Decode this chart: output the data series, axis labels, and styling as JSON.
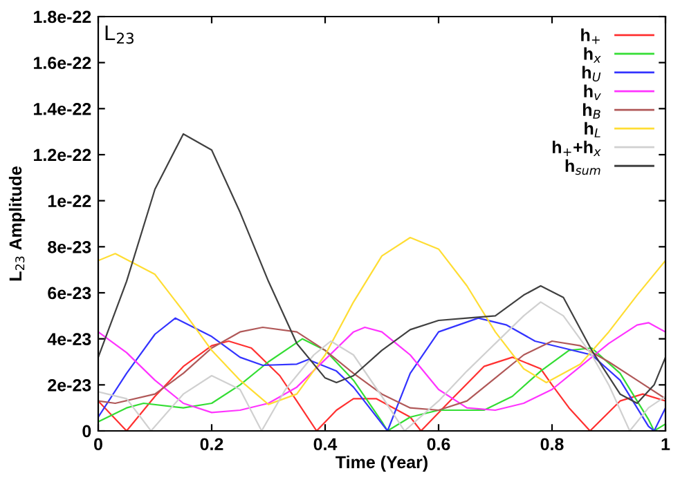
{
  "chart_data": {
    "type": "line",
    "title": "L$_{23}$",
    "xlabel": "Time (Year)",
    "ylabel": "L$_{23}$ Amplitude",
    "xlim": [
      0,
      1
    ],
    "ylim": [
      0,
      1.8e-22
    ],
    "xticks": [
      0,
      0.2,
      0.4,
      0.6,
      0.8,
      1
    ],
    "yticks": [
      0,
      {
        "value": 2e-23,
        "label": "2e-23"
      },
      {
        "value": 4e-23,
        "label": "4e-23"
      },
      {
        "value": 6e-23,
        "label": "6e-23"
      },
      {
        "value": 8e-23,
        "label": "8e-23"
      },
      {
        "value": 1e-22,
        "label": "1e-22"
      },
      {
        "value": 1.2e-22,
        "label": "1.2e-22"
      },
      {
        "value": 1.4e-22,
        "label": "1.4e-22"
      },
      {
        "value": 1.6e-22,
        "label": "1.6e-22"
      },
      {
        "value": 1.8e-22,
        "label": "1.8e-22"
      }
    ],
    "grid": false,
    "legend": "top right",
    "marker": "none",
    "line_style": "solid",
    "series": [
      {
        "name": "h$_{+}$",
        "color": "#ff3030",
        "x": [
          0,
          0.05,
          0.1,
          0.15,
          0.2,
          0.23,
          0.27,
          0.32,
          0.35,
          0.385,
          0.42,
          0.45,
          0.49,
          0.55,
          0.569,
          0.62,
          0.68,
          0.73,
          0.78,
          0.8,
          0.83,
          0.867,
          0.92,
          0.96,
          1.0
        ],
        "values": [
          1.3e-23,
          0,
          1.5e-23,
          2.8e-23,
          3.7e-23,
          3.9e-23,
          3.6e-23,
          2.4e-23,
          1.3e-23,
          0,
          9e-24,
          1.4e-23,
          1.4e-23,
          6e-24,
          0,
          1.3e-23,
          2.8e-23,
          3.2e-23,
          2.7e-23,
          2e-23,
          1e-23,
          0,
          1.3e-23,
          1.6e-23,
          1.3e-23
        ]
      },
      {
        "name": "h$_{x}$",
        "color": "#33dd33",
        "x": [
          0,
          0.05,
          0.08,
          0.15,
          0.2,
          0.25,
          0.3,
          0.36,
          0.4,
          0.45,
          0.5,
          0.51,
          0.55,
          0.6,
          0.68,
          0.73,
          0.78,
          0.83,
          0.87,
          0.92,
          0.97,
          0.98,
          1.0
        ],
        "values": [
          4e-24,
          1e-23,
          1.2e-23,
          1e-23,
          1.2e-23,
          2e-23,
          3e-23,
          4e-23,
          3.5e-23,
          2.2e-23,
          4e-24,
          0,
          6e-24,
          9e-24,
          9e-24,
          1.5e-23,
          2.6e-23,
          3.5e-23,
          3.6e-23,
          2.5e-23,
          5e-24,
          0,
          3e-24
        ]
      },
      {
        "name": "h$_{U}$",
        "color": "#3333ff",
        "x": [
          0,
          0.05,
          0.1,
          0.136,
          0.2,
          0.25,
          0.29,
          0.35,
          0.37,
          0.42,
          0.45,
          0.51,
          0.55,
          0.6,
          0.67,
          0.72,
          0.77,
          0.82,
          0.87,
          0.92,
          0.97,
          0.98,
          1.0
        ],
        "values": [
          6e-24,
          2.5e-23,
          4.2e-23,
          4.9e-23,
          4.1e-23,
          3.2e-23,
          2.85e-23,
          2.9e-23,
          3.1e-23,
          2.6e-23,
          1.9e-23,
          0,
          2.5e-23,
          4.3e-23,
          4.9e-23,
          4.6e-23,
          3.9e-23,
          3.6e-23,
          3.3e-23,
          2.2e-23,
          2e-24,
          0,
          1e-23
        ]
      },
      {
        "name": "h$_{v}$",
        "color": "#ff33ff",
        "x": [
          0,
          0.05,
          0.1,
          0.15,
          0.2,
          0.25,
          0.3,
          0.35,
          0.4,
          0.45,
          0.47,
          0.5,
          0.55,
          0.6,
          0.65,
          0.7,
          0.75,
          0.8,
          0.85,
          0.9,
          0.95,
          0.97,
          1.0
        ],
        "values": [
          4.3e-23,
          3.4e-23,
          2.2e-23,
          1.2e-23,
          8e-24,
          9e-24,
          1.2e-23,
          1.9e-23,
          3.1e-23,
          4.3e-23,
          4.5e-23,
          4.3e-23,
          3.3e-23,
          1.8e-23,
          1e-23,
          9e-24,
          1.2e-23,
          1.8e-23,
          2.8e-23,
          3.8e-23,
          4.6e-23,
          4.7e-23,
          4.3e-23
        ]
      },
      {
        "name": "h$_{B}$",
        "color": "#b05858",
        "x": [
          0,
          0.03,
          0.1,
          0.15,
          0.2,
          0.25,
          0.29,
          0.35,
          0.4,
          0.45,
          0.5,
          0.55,
          0.6,
          0.65,
          0.7,
          0.75,
          0.8,
          0.85,
          0.9,
          0.95,
          1.0
        ],
        "values": [
          1.3e-23,
          1.2e-23,
          1.6e-23,
          2.5e-23,
          3.6e-23,
          4.3e-23,
          4.5e-23,
          4.3e-23,
          3.5e-23,
          2.5e-23,
          1.6e-23,
          1e-23,
          9e-24,
          1.3e-23,
          2.3e-23,
          3.3e-23,
          3.9e-23,
          3.7e-23,
          3e-23,
          2.2e-23,
          1.4e-23
        ]
      },
      {
        "name": "h$_{L}$",
        "color": "#ffdd33",
        "x": [
          0,
          0.03,
          0.1,
          0.15,
          0.2,
          0.25,
          0.3,
          0.35,
          0.4,
          0.45,
          0.5,
          0.55,
          0.6,
          0.65,
          0.7,
          0.75,
          0.79,
          0.85,
          0.9,
          0.95,
          1.0
        ],
        "values": [
          7.4e-23,
          7.7e-23,
          6.8e-23,
          5.2e-23,
          3.5e-23,
          2.2e-23,
          1.15e-23,
          1.6e-23,
          3.3e-23,
          5.6e-23,
          7.6e-23,
          8.4e-23,
          7.9e-23,
          6.3e-23,
          4.3e-23,
          2.7e-23,
          2.1e-23,
          2.9e-23,
          4.3e-23,
          5.9e-23,
          7.4e-23
        ]
      },
      {
        "name": "h$_{+}$+h$_{x}$",
        "color": "#d0d0d0",
        "x": [
          0,
          0.05,
          0.093,
          0.15,
          0.2,
          0.25,
          0.288,
          0.33,
          0.38,
          0.41,
          0.45,
          0.5,
          0.54,
          0.6,
          0.65,
          0.7,
          0.75,
          0.78,
          0.82,
          0.87,
          0.9,
          0.937,
          0.97,
          1.0
        ],
        "values": [
          1.7e-23,
          1.4e-23,
          0,
          1.6e-23,
          2.4e-23,
          1.8e-23,
          0,
          1.8e-23,
          3.3e-23,
          3.9e-23,
          3.3e-23,
          1.5e-23,
          0,
          1.3e-23,
          2.6e-23,
          3.8e-23,
          5e-23,
          5.6e-23,
          5e-23,
          3.3e-23,
          2e-23,
          0,
          1e-23,
          1.5e-23
        ]
      },
      {
        "name": "h$_{sum}$",
        "color": "#404040",
        "x": [
          0,
          0.05,
          0.1,
          0.15,
          0.2,
          0.25,
          0.3,
          0.35,
          0.4,
          0.42,
          0.45,
          0.5,
          0.55,
          0.6,
          0.65,
          0.7,
          0.75,
          0.78,
          0.82,
          0.87,
          0.92,
          0.95,
          0.98,
          1.0
        ],
        "values": [
          3.2e-23,
          6.5e-23,
          1.05e-22,
          1.29e-22,
          1.22e-22,
          9.5e-23,
          6.5e-23,
          3.8e-23,
          2.3e-23,
          2.1e-23,
          2.4e-23,
          3.5e-23,
          4.4e-23,
          4.8e-23,
          4.9e-23,
          5e-23,
          5.9e-23,
          6.3e-23,
          5.8e-23,
          3.5e-23,
          1.6e-23,
          1.2e-23,
          2e-23,
          3.2e-23
        ]
      }
    ]
  }
}
